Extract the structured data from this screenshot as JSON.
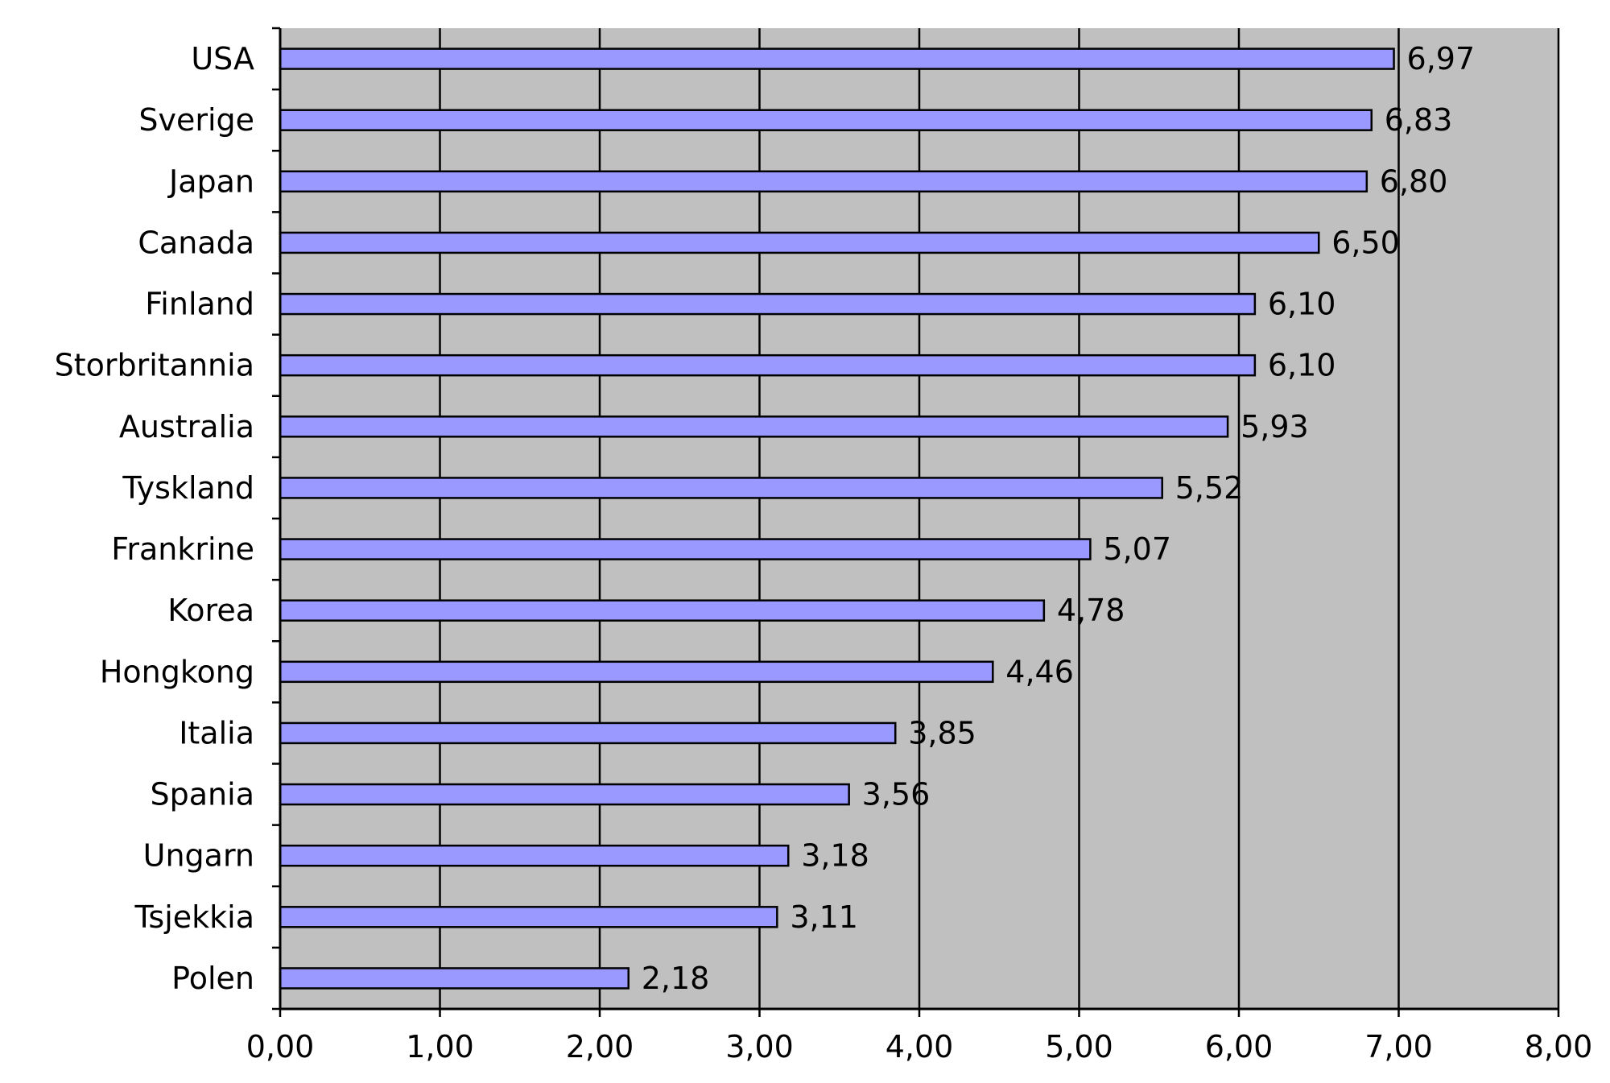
{
  "chart_data": {
    "type": "bar",
    "orientation": "horizontal",
    "title": "",
    "xlabel": "",
    "ylabel": "",
    "categories": [
      "USA",
      "Sverige",
      "Japan",
      "Canada",
      "Finland",
      "Storbritannia",
      "Australia",
      "Tyskland",
      "Frankrine",
      "Korea",
      "Hongkong",
      "Italia",
      "Spania",
      "Ungarn",
      "Tsjekkia",
      "Polen"
    ],
    "values": [
      6.97,
      6.83,
      6.8,
      6.5,
      6.1,
      6.1,
      5.93,
      5.52,
      5.07,
      4.78,
      4.46,
      3.85,
      3.56,
      3.18,
      3.11,
      2.18
    ],
    "value_labels": [
      "6,97",
      "6,83",
      "6,80",
      "6,50",
      "6,10",
      "6,10",
      "5,93",
      "5,52",
      "5,07",
      "4,78",
      "4,46",
      "3,85",
      "3,56",
      "3,18",
      "3,11",
      "2,18"
    ],
    "xlim": [
      0,
      8
    ],
    "x_ticks": [
      0,
      1,
      2,
      3,
      4,
      5,
      6,
      7,
      8
    ],
    "x_tick_labels": [
      "0,00",
      "1,00",
      "2,00",
      "3,00",
      "4,00",
      "5,00",
      "6,00",
      "7,00",
      "8,00"
    ],
    "grid": "vertical",
    "legend": "none",
    "colors": {
      "bar_fill": "#9999ff",
      "bar_stroke": "#000000",
      "plot_background": "#c0c0c0",
      "gridline": "#000000",
      "axis": "#000000",
      "page_background": "#ffffff"
    }
  }
}
